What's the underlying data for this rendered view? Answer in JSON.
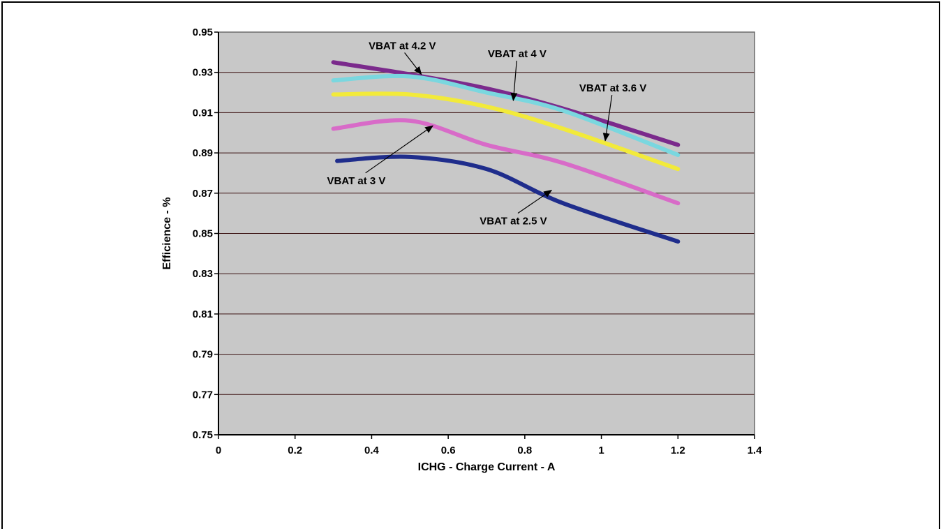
{
  "chart_data": {
    "type": "line",
    "xlabel": "ICHG - Charge Current - A",
    "ylabel": "Efficience - %",
    "xlim": [
      0,
      1.4
    ],
    "ylim": [
      0.75,
      0.95
    ],
    "x_ticks": [
      "0",
      "0.2",
      "0.4",
      "0.6",
      "0.8",
      "1",
      "1.2",
      "1.4"
    ],
    "y_ticks": [
      "0.75",
      "0.77",
      "0.79",
      "0.81",
      "0.83",
      "0.85",
      "0.87",
      "0.89",
      "0.91",
      "0.93",
      "0.95"
    ],
    "grid": "horizontal",
    "plot_background": "#c8c8c8",
    "series": [
      {
        "name": "VBAT at 4.2 V",
        "color": "#7b2a8c",
        "points": [
          [
            0.3,
            0.935
          ],
          [
            0.5,
            0.929
          ],
          [
            0.7,
            0.922
          ],
          [
            0.9,
            0.912
          ],
          [
            1.2,
            0.894
          ]
        ]
      },
      {
        "name": "VBAT at 4 V",
        "color": "#7ad7df",
        "points": [
          [
            0.3,
            0.926
          ],
          [
            0.5,
            0.928
          ],
          [
            0.7,
            0.92
          ],
          [
            0.9,
            0.911
          ],
          [
            1.2,
            0.889
          ]
        ]
      },
      {
        "name": "VBAT at 3.6 V",
        "color": "#f2ea3a",
        "points": [
          [
            0.3,
            0.919
          ],
          [
            0.5,
            0.919
          ],
          [
            0.7,
            0.913
          ],
          [
            0.9,
            0.902
          ],
          [
            1.2,
            0.882
          ]
        ]
      },
      {
        "name": "VBAT at 3 V",
        "color": "#d86bc8",
        "points": [
          [
            0.3,
            0.902
          ],
          [
            0.5,
            0.906
          ],
          [
            0.7,
            0.894
          ],
          [
            0.9,
            0.885
          ],
          [
            1.2,
            0.865
          ]
        ]
      },
      {
        "name": "VBAT at 2.5 V",
        "color": "#1f2d8c",
        "points": [
          [
            0.31,
            0.886
          ],
          [
            0.5,
            0.888
          ],
          [
            0.7,
            0.882
          ],
          [
            0.9,
            0.865
          ],
          [
            1.2,
            0.846
          ]
        ]
      }
    ],
    "annotations": [
      {
        "text": "VBAT at 4.2 V",
        "x": 0.48,
        "y": 0.9415,
        "arrow_to": [
          0.53,
          0.929
        ]
      },
      {
        "text": "VBAT at 4 V",
        "x": 0.78,
        "y": 0.9375,
        "arrow_to": [
          0.77,
          0.916
        ]
      },
      {
        "text": "VBAT at 3.6 V",
        "x": 1.03,
        "y": 0.9205,
        "arrow_to": [
          1.01,
          0.896
        ]
      },
      {
        "text": "VBAT at 3 V",
        "x": 0.36,
        "y": 0.8745,
        "arrow_to": [
          0.56,
          0.9035
        ]
      },
      {
        "text": "VBAT at 2.5 V",
        "x": 0.77,
        "y": 0.8545,
        "arrow_to": [
          0.87,
          0.8715
        ]
      }
    ]
  }
}
